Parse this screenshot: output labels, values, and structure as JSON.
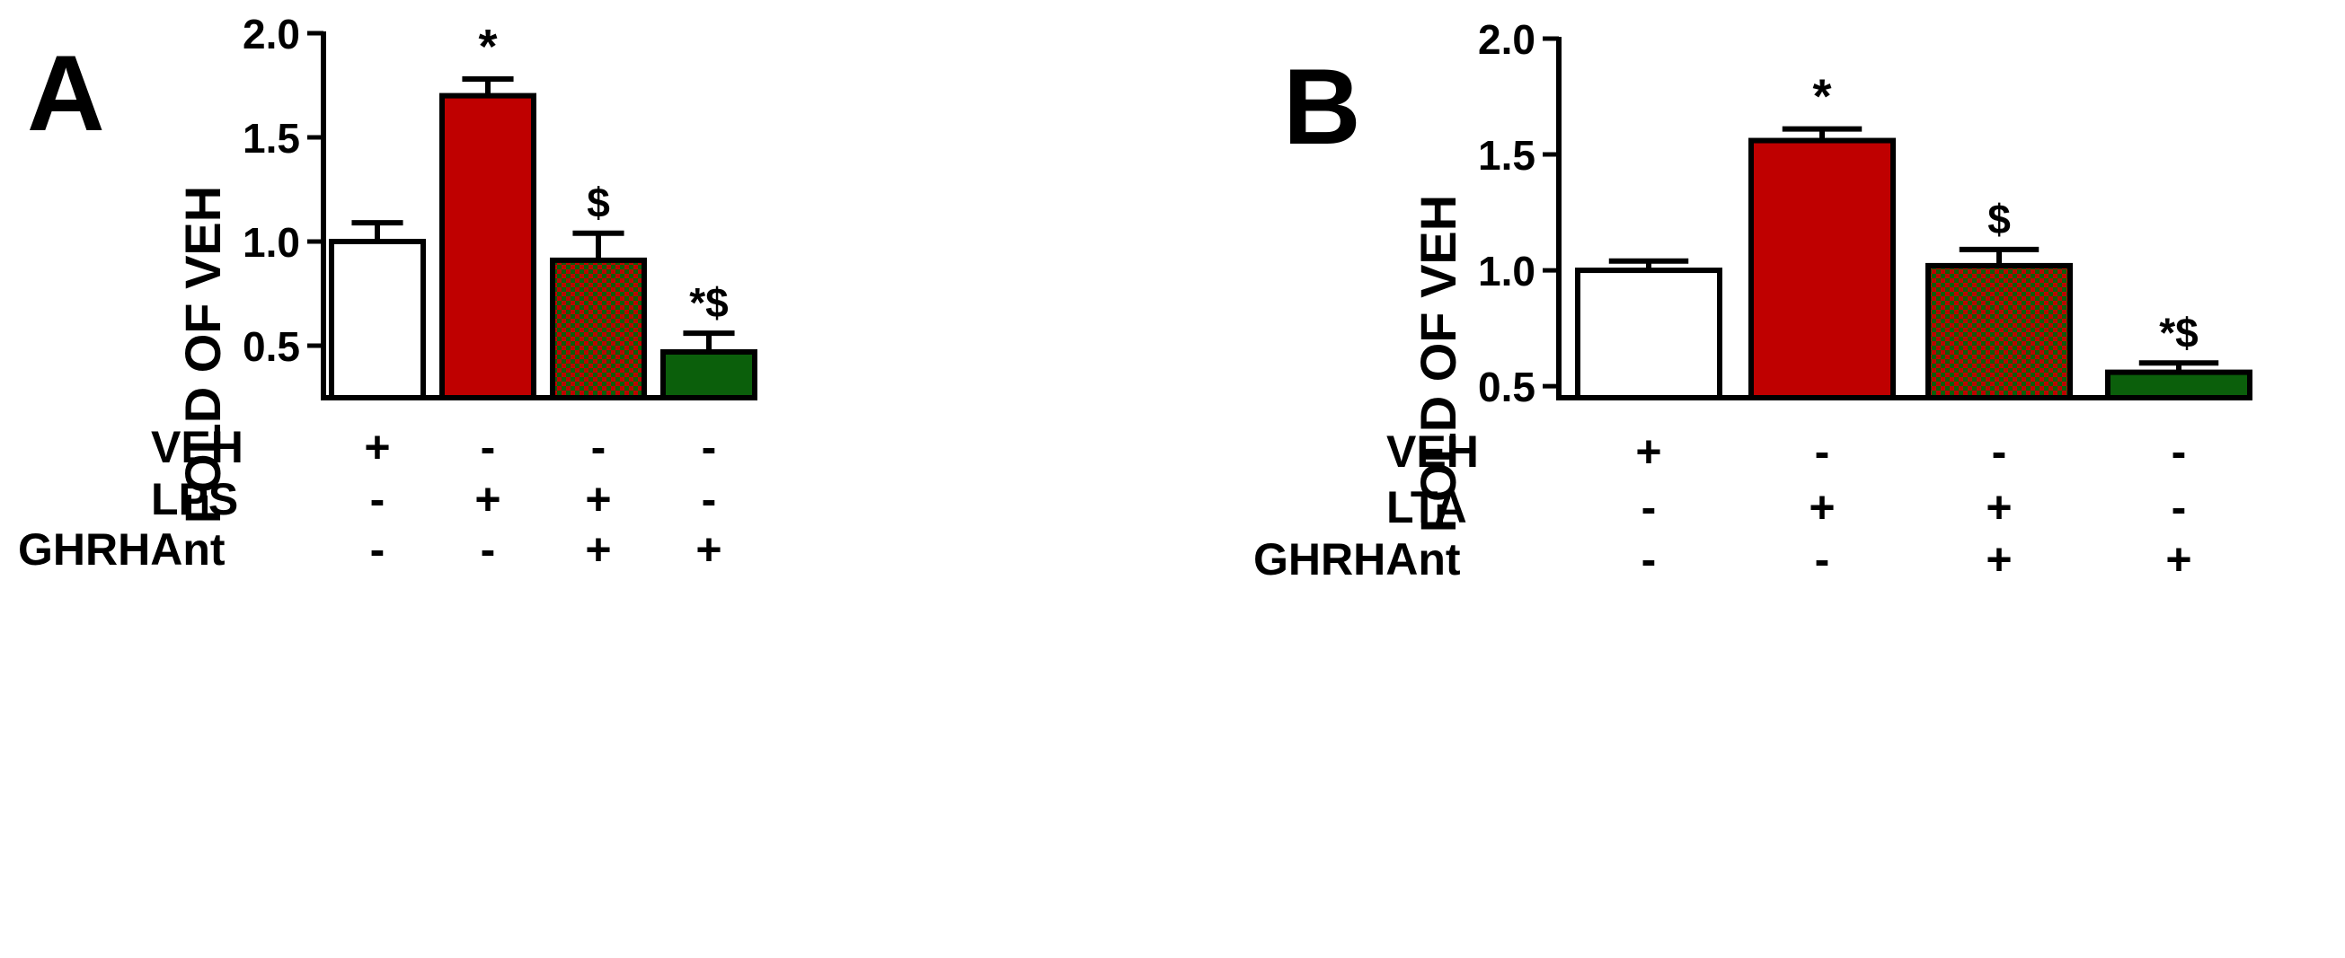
{
  "chart_data": [
    {
      "type": "bar",
      "panel_label": "A",
      "ylabel": "FOLD OF VEH",
      "ylim": [
        0.25,
        2.0
      ],
      "yticks": [
        "0.5",
        "1.0",
        "1.5",
        "2.0"
      ],
      "ytick_values": [
        0.5,
        1.0,
        1.5,
        2.0
      ],
      "grid": false,
      "bars": [
        {
          "value": 1.0,
          "error": 0.09,
          "annotation": "",
          "fill": "white"
        },
        {
          "value": 1.7,
          "error": 0.08,
          "annotation": "*",
          "fill": "red"
        },
        {
          "value": 0.91,
          "error": 0.13,
          "annotation": "$",
          "fill": "checker"
        },
        {
          "value": 0.47,
          "error": 0.09,
          "annotation": "*$",
          "fill": "green"
        }
      ],
      "treatments": [
        {
          "label": "VEH",
          "signs": [
            "+",
            "-",
            "-",
            "-"
          ]
        },
        {
          "label": "LPS",
          "signs": [
            "-",
            "+",
            "+",
            "-"
          ]
        },
        {
          "label": "GHRHAnt",
          "signs": [
            "-",
            "-",
            "+",
            "+"
          ]
        }
      ]
    },
    {
      "type": "bar",
      "panel_label": "B",
      "ylabel": "FOLD OF VEH",
      "ylim": [
        0.45,
        2.0
      ],
      "yticks": [
        "0.5",
        "1.0",
        "1.5",
        "2.0"
      ],
      "ytick_values": [
        0.5,
        1.0,
        1.5,
        2.0
      ],
      "grid": false,
      "bars": [
        {
          "value": 1.0,
          "error": 0.04,
          "annotation": "",
          "fill": "white"
        },
        {
          "value": 1.56,
          "error": 0.05,
          "annotation": "*",
          "fill": "red"
        },
        {
          "value": 1.02,
          "error": 0.07,
          "annotation": "$",
          "fill": "checker"
        },
        {
          "value": 0.56,
          "error": 0.04,
          "annotation": "*$",
          "fill": "green"
        }
      ],
      "treatments": [
        {
          "label": "VEH",
          "signs": [
            "+",
            "-",
            "-",
            "-"
          ]
        },
        {
          "label": "LTA",
          "signs": [
            "-",
            "+",
            "+",
            "-"
          ]
        },
        {
          "label": "GHRHAnt",
          "signs": [
            "-",
            "-",
            "+",
            "+"
          ]
        }
      ]
    }
  ],
  "colors": {
    "red": "#bf0000",
    "green": "#0b5f0b",
    "white": "#ffffff",
    "axis": "#000000"
  }
}
